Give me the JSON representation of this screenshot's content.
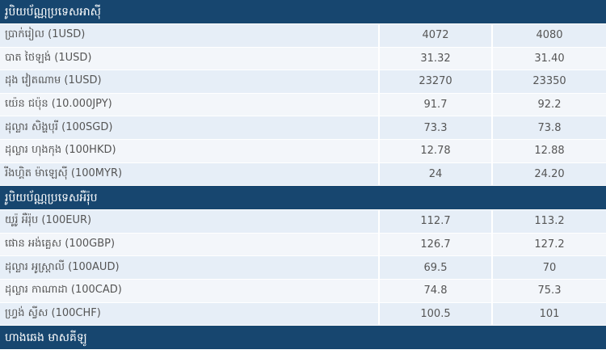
{
  "sections": [
    {
      "title": "រូបិយប័ណ្ណប្រទេសអាស៊ី",
      "rows": [
        [
          "ប្រាក់រៀល (1USD)",
          "4072",
          "4080"
        ],
        [
          "បាត ថៃឡង់ (1USD)",
          "31.32",
          "31.40"
        ],
        [
          "ដុង វៀតណាម (1USD)",
          "23270",
          "23350"
        ],
        [
          "យ៉េន ជប៉ុន (10.000JPY)",
          "91.7",
          "92.2"
        ],
        [
          "ដុល្លារ សិង្ហបុរី (100SGD)",
          "73.3",
          "73.8"
        ],
        [
          "ដុល្លារ ហុងកុង (100HKD)",
          "12.78",
          "12.88"
        ],
        [
          "រីងហ្គិត ម៉ាឡេស៊ី (100MYR)",
          "24",
          "24.20"
        ]
      ]
    },
    {
      "title": "រូបិយប័ណ្ណប្រទេសអឺរ៉ុប",
      "rows": [
        [
          "យូរ៉ូ អឺរ៉ុប (100EUR)",
          "112.7",
          "113.2"
        ],
        [
          "ផោន អង់គ្លេស (100GBP)",
          "126.7",
          "127.2"
        ],
        [
          "ដុល្លារ អូស្ត្រាលី (100AUD)",
          "69.5",
          "70"
        ],
        [
          "ដុល្លារ កាណាដា (100CAD)",
          "74.8",
          "75.3"
        ],
        [
          "ហ្វ្រង់ ស្វីស (100CHF)",
          "100.5",
          "101"
        ]
      ]
    },
    {
      "title": "ហាងឆេង មាសគីឡូ"
    }
  ]
}
